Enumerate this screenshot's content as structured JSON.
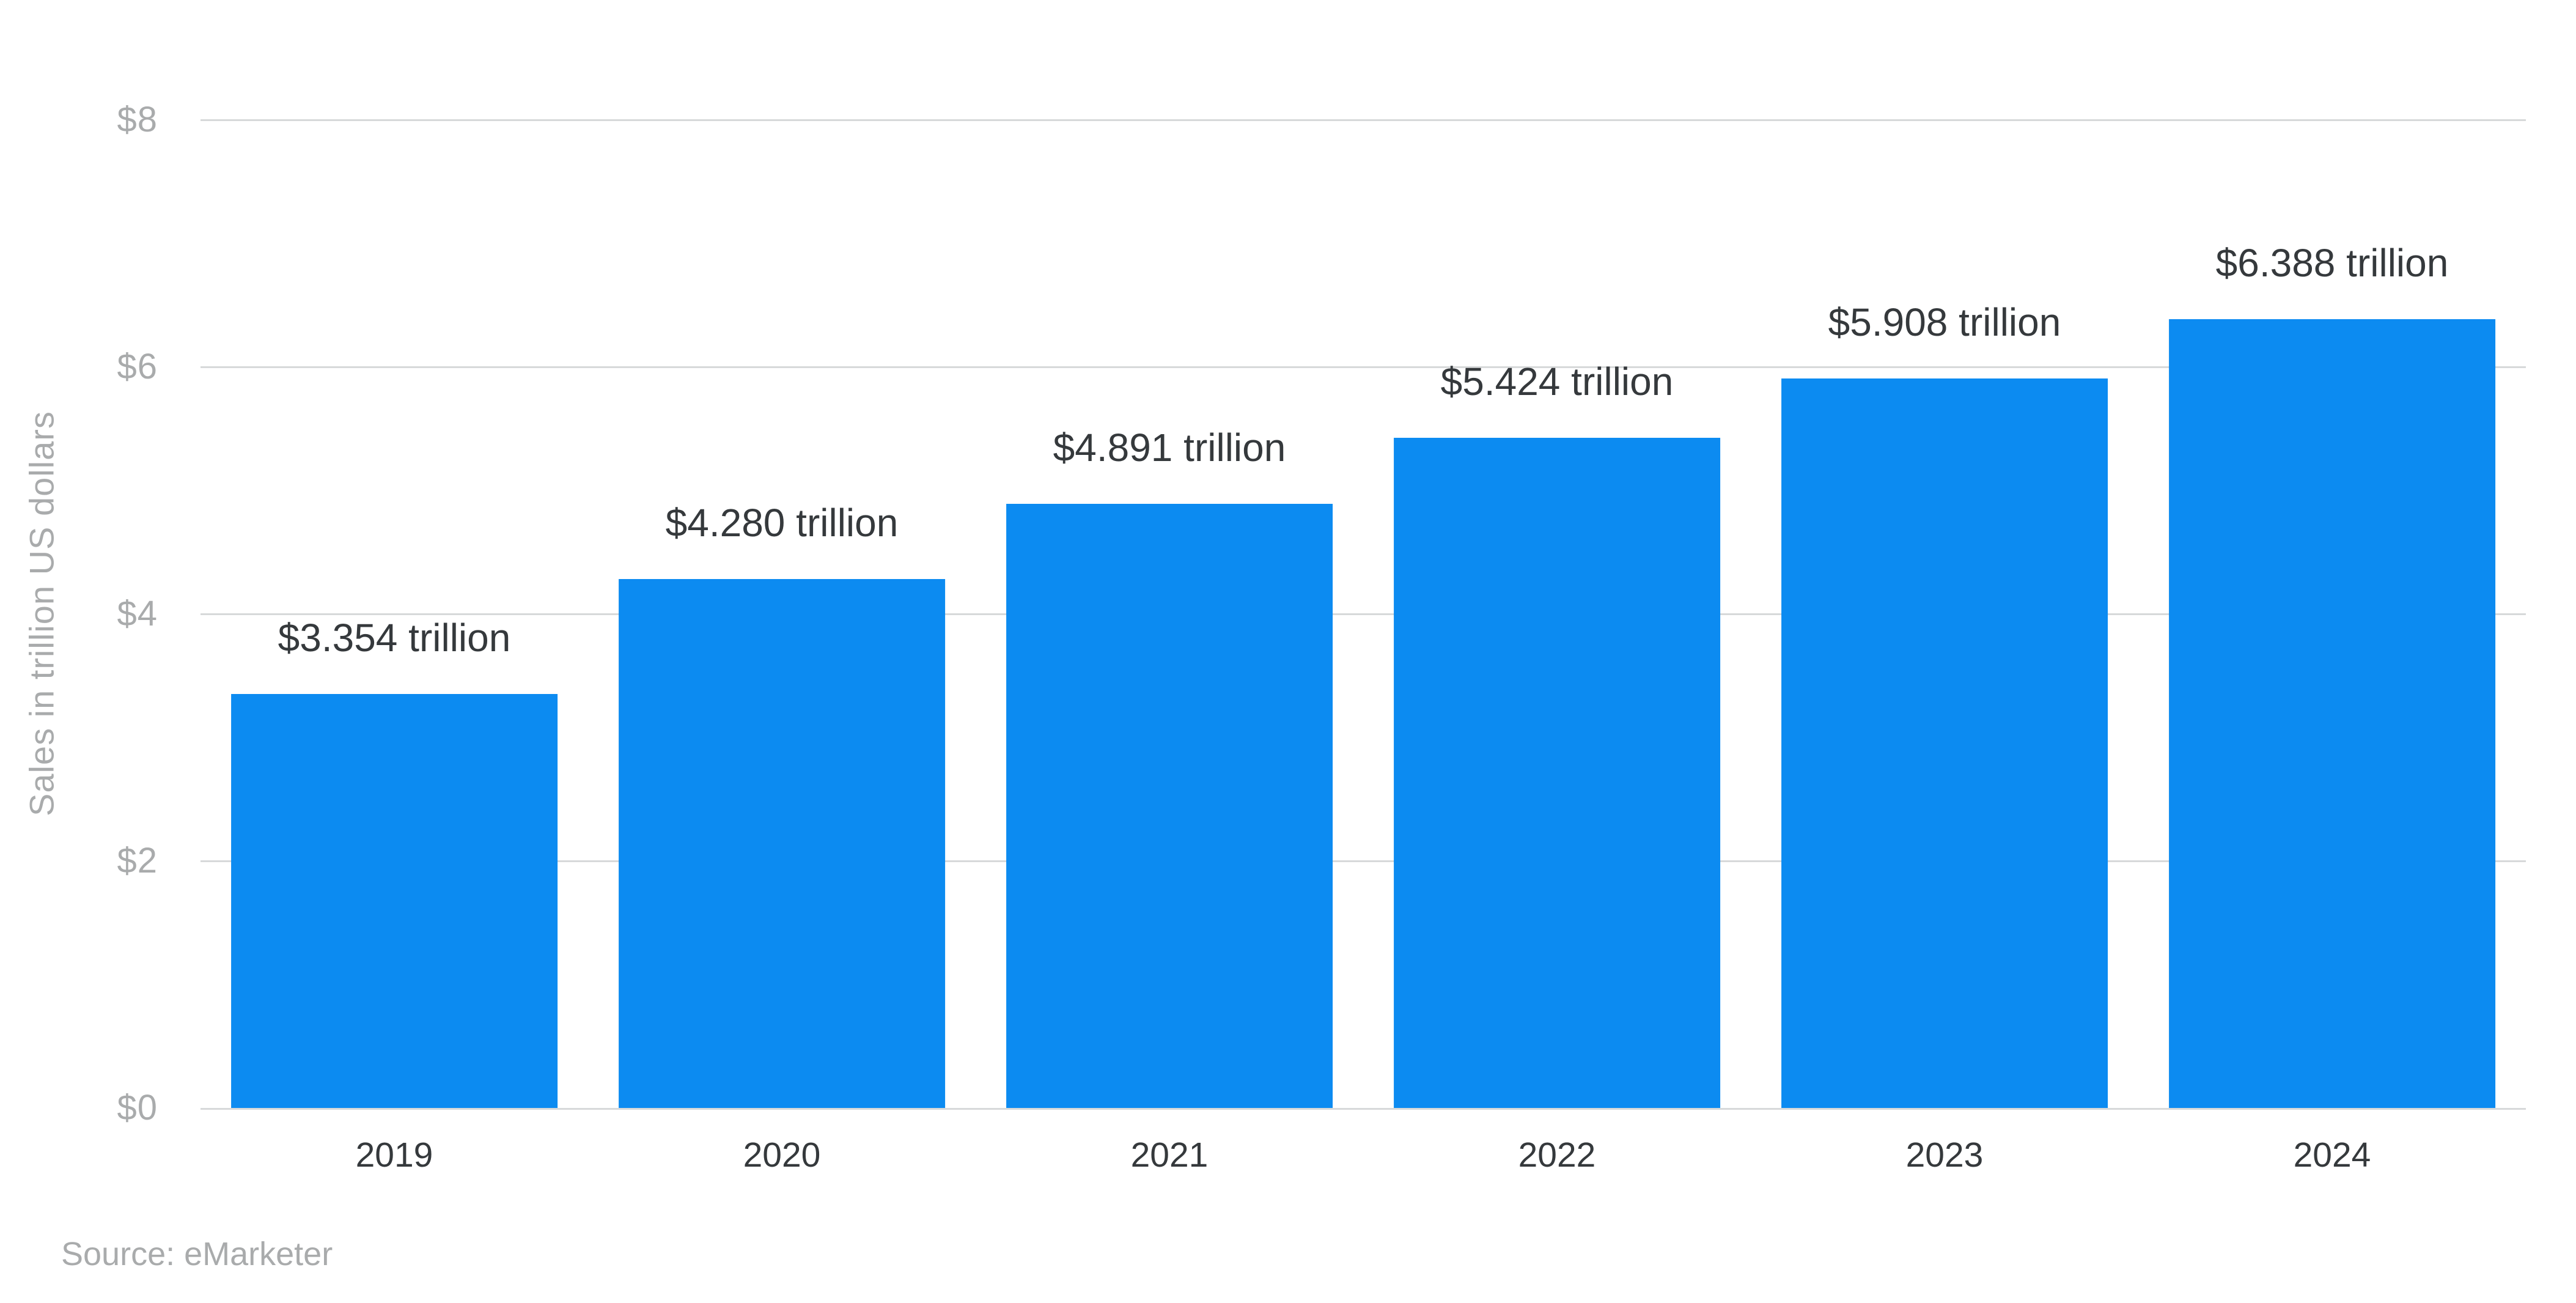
{
  "page": {
    "background": "#ffffff"
  },
  "colors": {
    "bar": "#0c8bf1",
    "gridline": "#d7d9da",
    "muted_text": "#a9abac",
    "dark_text": "#35393c"
  },
  "chart_data": {
    "type": "bar",
    "title": "",
    "categories": [
      "2019",
      "2020",
      "2021",
      "2022",
      "2023",
      "2024"
    ],
    "values": [
      3.354,
      4.28,
      4.891,
      5.424,
      5.908,
      6.388
    ],
    "bar_value_labels": [
      "$3.354 trillion",
      "$4.280 trillion",
      "$4.891 trillion",
      "$5.424 trillion",
      "$5.908 trillion",
      "$6.388 trillion"
    ],
    "xlabel": "",
    "ylabel": "Sales in trillion US dollars",
    "ylim": [
      0,
      8
    ],
    "y_ticks": [
      {
        "value": 0,
        "label": "$0"
      },
      {
        "value": 2,
        "label": "$2"
      },
      {
        "value": 4,
        "label": "$4"
      },
      {
        "value": 6,
        "label": "$6"
      },
      {
        "value": 8,
        "label": "$8"
      }
    ],
    "grid": true,
    "legend": false,
    "bar_color": "#0c8bf1",
    "source": "Source: eMarketer"
  }
}
